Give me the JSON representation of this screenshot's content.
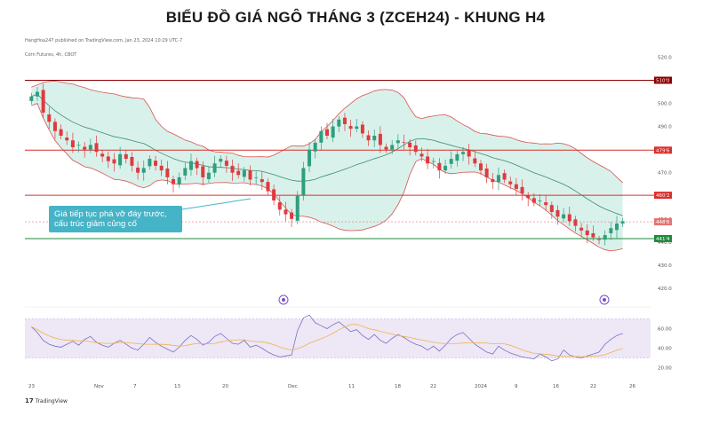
{
  "title": "BIỂU ĐỒ GIÁ NGÔ THÁNG 3 (ZCEH24) - KHUNG H4",
  "header": {
    "publish_line": "HangHoa247 published on TradingView.com, Jan 23, 2024 10:29 UTC-7",
    "symbol_line": "Corn Futures, 4h, CBOT"
  },
  "callout": {
    "text": "Giá tiếp tục phá vỡ đáy trước, cấu trúc giảm củng cố"
  },
  "branding": {
    "logo_text": "TradingView",
    "logo_mark": "17"
  },
  "colors": {
    "resistance_line": "#d9302e",
    "top_line": "#8b0000",
    "support_line": "#1e8a3c",
    "bollinger_fill": "#cfeee6",
    "bollinger_upper_lower": "#d9534f",
    "bollinger_mid": "#3a8d6e",
    "candle_up": "#2f9e7e",
    "candle_down": "#e03a3e",
    "rsi_band": "#ede7f6",
    "rsi_line": "#7b6fc2",
    "rsi_ma": "#f0b44c",
    "callout_bg": "#45b4c7"
  },
  "icons": [
    "event-icon",
    "dividend-icon"
  ],
  "chart_data": {
    "type": "candlestick",
    "timeframe": "4h",
    "price_axis": {
      "range": [
        415,
        524
      ],
      "ticks": [
        420,
        430,
        440,
        450,
        460,
        470,
        480,
        490,
        500,
        510,
        520
      ],
      "tick_labels": [
        "420.0",
        "430.0",
        "440.0",
        "450.0",
        "460.0",
        "470.0",
        "480.0",
        "490.0",
        "500.0",
        "510.0",
        "520.0"
      ]
    },
    "horizontal_levels": [
      {
        "label": "510'0",
        "value": 510,
        "role": "top"
      },
      {
        "label": "479'6",
        "value": 479.75,
        "role": "resistance"
      },
      {
        "label": "460'2",
        "value": 460.25,
        "role": "resistance"
      },
      {
        "label": "441'4",
        "value": 441.5,
        "role": "support"
      }
    ],
    "last_price_label": "448'6",
    "last_price": 448.75,
    "x_axis_labels": [
      "23",
      "Nov",
      "7",
      "13",
      "20",
      "Dec",
      "11",
      "18",
      "22",
      "2024",
      "9",
      "16",
      "22",
      "26"
    ],
    "close_series": [
      503,
      505,
      496,
      492,
      488,
      486,
      484,
      481,
      482,
      480,
      482,
      479,
      477,
      475,
      474,
      478,
      476,
      473,
      470,
      472,
      476,
      473,
      471,
      468,
      465,
      468,
      472,
      475,
      472,
      468,
      470,
      474,
      476,
      473,
      470,
      469,
      471,
      467,
      468,
      466,
      462,
      458,
      454,
      452,
      450,
      460,
      472,
      480,
      483,
      488,
      486,
      490,
      493,
      491,
      489,
      490,
      487,
      484,
      486,
      482,
      480,
      482,
      484,
      483,
      481,
      479,
      477,
      474,
      475,
      471,
      473,
      476,
      478,
      479,
      477,
      474,
      471,
      468,
      466,
      469,
      467,
      465,
      463,
      461,
      459,
      457,
      458,
      456,
      453,
      451,
      452,
      449,
      447,
      445,
      443,
      442,
      441,
      443,
      446,
      448,
      449
    ],
    "rsi": {
      "axis_ticks": [
        20,
        40,
        60
      ],
      "tick_labels": [
        "20.00",
        "40.00",
        "60.00"
      ],
      "band": [
        30,
        70
      ],
      "values": [
        62,
        56,
        48,
        44,
        42,
        41,
        44,
        47,
        43,
        49,
        52,
        46,
        43,
        41,
        45,
        48,
        44,
        40,
        38,
        44,
        51,
        46,
        42,
        39,
        36,
        41,
        48,
        53,
        49,
        43,
        46,
        52,
        55,
        50,
        45,
        44,
        48,
        41,
        43,
        40,
        36,
        33,
        31,
        32,
        33,
        58,
        71,
        74,
        66,
        63,
        60,
        64,
        67,
        62,
        57,
        59,
        53,
        49,
        54,
        48,
        45,
        50,
        54,
        51,
        47,
        44,
        42,
        38,
        42,
        37,
        43,
        50,
        54,
        56,
        50,
        44,
        40,
        36,
        34,
        42,
        38,
        35,
        33,
        31,
        30,
        29,
        34,
        31,
        27,
        29,
        38,
        33,
        31,
        30,
        32,
        34,
        36,
        44,
        49,
        53,
        55
      ]
    }
  }
}
